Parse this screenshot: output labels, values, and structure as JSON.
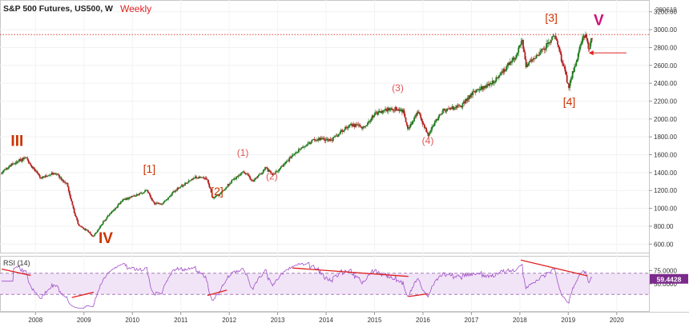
{
  "header": {
    "title": "S&P 500 Futures, US500, W",
    "timeframe": "Weekly",
    "chart_id": "280619"
  },
  "colors": {
    "up_candle": "#1e7b1e",
    "down_candle": "#b22222",
    "wave_major": "#cc3300",
    "wave_minor": "#e05555",
    "wave_v": "#cc1177",
    "rsi_line": "#a050c8",
    "rsi_band": "#f1e4f7",
    "trend_line": "#e02020",
    "price_line": "#e04040",
    "rsi_badge": "#7b2a8c"
  },
  "chart_data": [
    {
      "type": "candlestick",
      "title": "S&P 500 Futures, US500, W",
      "x_ticks": [
        "2008",
        "2009",
        "2010",
        "2011",
        "2012",
        "2013",
        "2014",
        "2015",
        "2016",
        "2017",
        "2018",
        "2019",
        "2020"
      ],
      "x_range": [
        2007.3,
        2020.5
      ],
      "y_ticks": [
        "600.00",
        "800.00",
        "1000.00",
        "1200.00",
        "1400.00",
        "1600.00",
        "1800.00",
        "2000.00",
        "2200.00",
        "2400.00",
        "2600.00",
        "2800.00",
        "3000.00",
        "3200.00"
      ],
      "y_range": [
        540,
        3260
      ],
      "current_price_line": 2945,
      "price_path": [
        [
          2007.3,
          1400
        ],
        [
          2007.55,
          1510
        ],
        [
          2007.8,
          1565
        ],
        [
          2008.1,
          1340
        ],
        [
          2008.4,
          1400
        ],
        [
          2008.65,
          1270
        ],
        [
          2008.8,
          950
        ],
        [
          2008.9,
          800
        ],
        [
          2009.1,
          740
        ],
        [
          2009.18,
          680
        ],
        [
          2009.5,
          920
        ],
        [
          2009.8,
          1090
        ],
        [
          2010.3,
          1200
        ],
        [
          2010.45,
          1060
        ],
        [
          2010.6,
          1040
        ],
        [
          2010.9,
          1210
        ],
        [
          2011.3,
          1345
        ],
        [
          2011.55,
          1330
        ],
        [
          2011.65,
          1120
        ],
        [
          2011.8,
          1150
        ],
        [
          2012.0,
          1280
        ],
        [
          2012.3,
          1410
        ],
        [
          2012.5,
          1300
        ],
        [
          2012.75,
          1450
        ],
        [
          2012.9,
          1370
        ],
        [
          2013.4,
          1640
        ],
        [
          2013.8,
          1780
        ],
        [
          2014.1,
          1760
        ],
        [
          2014.5,
          1940
        ],
        [
          2014.8,
          1900
        ],
        [
          2015.0,
          2060
        ],
        [
          2015.4,
          2120
        ],
        [
          2015.6,
          2080
        ],
        [
          2015.68,
          1880
        ],
        [
          2015.9,
          2080
        ],
        [
          2016.1,
          1820
        ],
        [
          2016.4,
          2090
        ],
        [
          2016.8,
          2150
        ],
        [
          2017.0,
          2280
        ],
        [
          2017.5,
          2440
        ],
        [
          2017.9,
          2690
        ],
        [
          2018.05,
          2880
        ],
        [
          2018.12,
          2600
        ],
        [
          2018.4,
          2730
        ],
        [
          2018.72,
          2930
        ],
        [
          2018.95,
          2500
        ],
        [
          2019.0,
          2350
        ],
        [
          2019.3,
          2900
        ],
        [
          2019.37,
          2945
        ],
        [
          2019.42,
          2740
        ],
        [
          2019.5,
          2945
        ]
      ],
      "annotations": [
        {
          "label": "III",
          "x": 2007.62,
          "y": 1700,
          "style": "major"
        },
        {
          "label": "IV",
          "x": 2009.45,
          "y": 610,
          "style": "major"
        },
        {
          "label": "[1]",
          "x": 2010.35,
          "y": 1400,
          "style": "bracket"
        },
        {
          "label": "[2]",
          "x": 2011.75,
          "y": 1150,
          "style": "bracket"
        },
        {
          "label": "(1)",
          "x": 2012.28,
          "y": 1585,
          "style": "minor"
        },
        {
          "label": "(2)",
          "x": 2012.88,
          "y": 1325,
          "style": "minor"
        },
        {
          "label": "(3)",
          "x": 2015.48,
          "y": 2310,
          "style": "minor"
        },
        {
          "label": "(4)",
          "x": 2016.1,
          "y": 1720,
          "style": "minor"
        },
        {
          "label": "[3]",
          "x": 2018.65,
          "y": 3090,
          "style": "bracket"
        },
        {
          "label": "[4]",
          "x": 2019.02,
          "y": 2150,
          "style": "bracket"
        },
        {
          "label": "V",
          "x": 2019.63,
          "y": 3050,
          "style": "v"
        }
      ]
    },
    {
      "type": "line",
      "title": "RSI (14)",
      "y_ticks": [
        "50.0000",
        "75.0000"
      ],
      "y_range": [
        0,
        100
      ],
      "band": [
        30,
        70
      ],
      "last_value": "59.4428",
      "trendlines": [
        {
          "x1": 2007.3,
          "y1": 78,
          "x2": 2007.9,
          "y2": 66
        },
        {
          "x1": 2008.75,
          "y1": 24,
          "x2": 2009.2,
          "y2": 34
        },
        {
          "x1": 2011.55,
          "y1": 28,
          "x2": 2011.95,
          "y2": 38
        },
        {
          "x1": 2013.3,
          "y1": 80,
          "x2": 2015.7,
          "y2": 64
        },
        {
          "x1": 2015.7,
          "y1": 26,
          "x2": 2016.1,
          "y2": 31
        },
        {
          "x1": 2018.02,
          "y1": 95,
          "x2": 2019.4,
          "y2": 65
        }
      ]
    }
  ]
}
